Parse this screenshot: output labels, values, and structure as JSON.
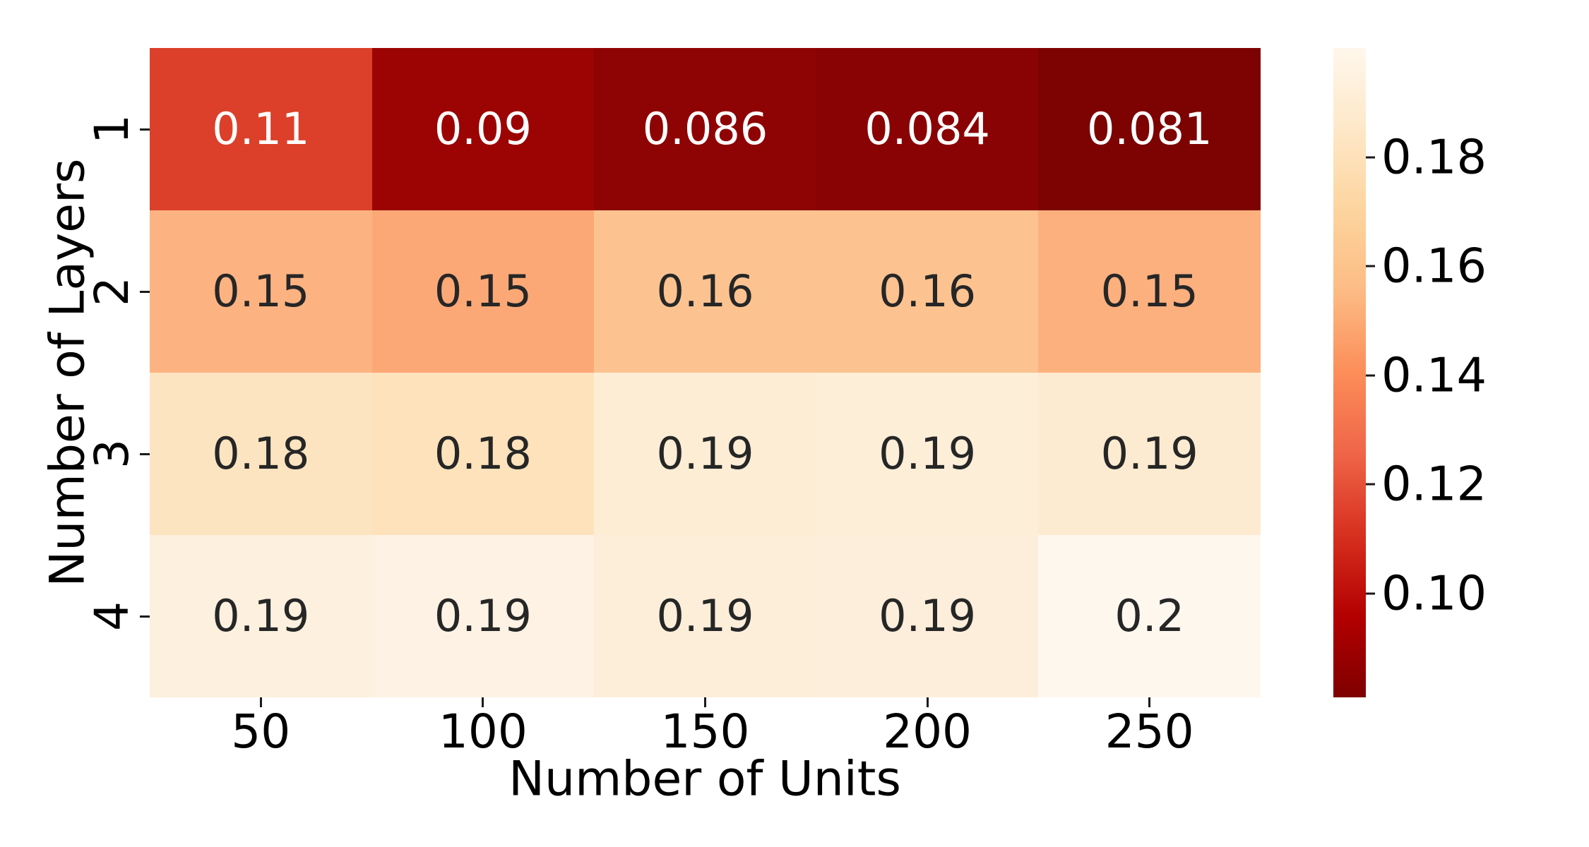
{
  "figure": {
    "background": "#ffffff",
    "axis_text_color": "#000000",
    "tick_mark_color": "#1a1a1a"
  },
  "chart_data": {
    "type": "heatmap",
    "title": "",
    "xlabel": "Number of Units",
    "ylabel": "Number of Layers",
    "x_categories": [
      "50",
      "100",
      "150",
      "200",
      "250"
    ],
    "y_categories": [
      "1",
      "2",
      "3",
      "4"
    ],
    "values": [
      [
        0.11,
        0.09,
        0.086,
        0.084,
        0.081
      ],
      [
        0.15,
        0.15,
        0.16,
        0.16,
        0.15
      ],
      [
        0.18,
        0.18,
        0.19,
        0.19,
        0.19
      ],
      [
        0.19,
        0.19,
        0.19,
        0.19,
        0.2
      ]
    ],
    "cell_labels": [
      [
        "0.11",
        "0.09",
        "0.086",
        "0.084",
        "0.081"
      ],
      [
        "0.15",
        "0.15",
        "0.16",
        "0.16",
        "0.15"
      ],
      [
        "0.18",
        "0.18",
        "0.19",
        "0.19",
        "0.19"
      ],
      [
        "0.19",
        "0.19",
        "0.19",
        "0.19",
        "0.2"
      ]
    ],
    "cell_colors": [
      [
        "#dc402a",
        "#9c0404",
        "#8e0303",
        "#8a0304",
        "#7d0202"
      ],
      [
        "#fcb381",
        "#fca876",
        "#fcc391",
        "#fcc28f",
        "#fcb07e"
      ],
      [
        "#fde4c1",
        "#fde2bc",
        "#fdedd5",
        "#fdeed8",
        "#fdebd1"
      ],
      [
        "#fdf0de",
        "#fdf2e3",
        "#fdeeda",
        "#fdeedb",
        "#fef7ee"
      ]
    ],
    "row_text_colors": [
      "#ffffff",
      "#262626",
      "#262626",
      "#262626"
    ],
    "colormap": "OrRd_r",
    "vmin": 0.081,
    "vmax": 0.2,
    "grid": false,
    "legend_position": "right-colorbar",
    "colorbar": {
      "ticks": [
        {
          "label": "0.18",
          "value": 0.18
        },
        {
          "label": "0.16",
          "value": 0.16
        },
        {
          "label": "0.14",
          "value": 0.14
        },
        {
          "label": "0.12",
          "value": 0.12
        },
        {
          "label": "0.10",
          "value": 0.1
        }
      ],
      "gradient_stops_bottom_to_top": [
        "#7f0000",
        "#b30000",
        "#d7301f",
        "#ef6548",
        "#fc8d59",
        "#fdbb84",
        "#fdd49e",
        "#fee8c8",
        "#fff7ec"
      ]
    }
  }
}
